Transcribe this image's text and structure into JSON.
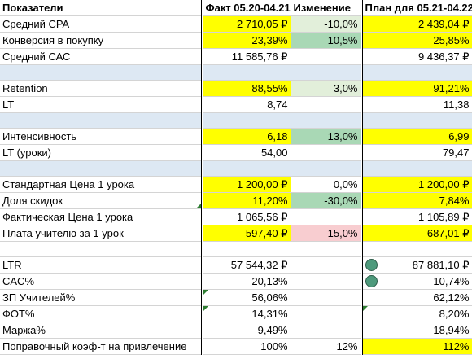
{
  "header": {
    "col0": "Показатели",
    "col1": "Факт 05.20-04.21",
    "col2": "Изменение",
    "col3": "План для 05.21-04.22"
  },
  "rows": [
    {
      "label": "Средний CPA",
      "fact": "2 710,05 ₽",
      "change": "-10,0%",
      "plan": "2 439,04 ₽"
    },
    {
      "label": "Конверсия в покупку",
      "fact": "23,39%",
      "change": "10,5%",
      "plan": "25,85%"
    },
    {
      "label": "Средний САС",
      "fact": "11 585,76 ₽",
      "change": "",
      "plan": "9 436,37 ₽"
    },
    {
      "label": "",
      "fact": "",
      "change": "",
      "plan": ""
    },
    {
      "label": "Retention",
      "fact": "88,55%",
      "change": "3,0%",
      "plan": "91,21%"
    },
    {
      "label": "LT",
      "fact": "8,74",
      "change": "",
      "plan": "11,38"
    },
    {
      "label": "",
      "fact": "",
      "change": "",
      "plan": ""
    },
    {
      "label": "Интенсивность",
      "fact": "6,18",
      "change": "13,0%",
      "plan": "6,99"
    },
    {
      "label": "LT (уроки)",
      "fact": "54,00",
      "change": "",
      "plan": "79,47"
    },
    {
      "label": "",
      "fact": "",
      "change": "",
      "plan": ""
    },
    {
      "label": "Стандартная Цена 1 урока",
      "fact": "1 200,00 ₽",
      "change": "0,0%",
      "plan": "1 200,00 ₽"
    },
    {
      "label": "Доля скидок",
      "fact": "11,20%",
      "change": "-30,0%",
      "plan": "7,84%"
    },
    {
      "label": "Фактическая Цена 1 урока",
      "fact": "1 065,56 ₽",
      "change": "",
      "plan": "1 105,89 ₽"
    },
    {
      "label": "Плата учителю за 1 урок",
      "fact": "597,40 ₽",
      "change": "15,0%",
      "plan": "687,01 ₽"
    },
    {
      "label": "",
      "fact": "",
      "change": "",
      "plan": ""
    },
    {
      "label": "LTR",
      "fact": "57 544,32 ₽",
      "change": "",
      "plan": "87 881,10 ₽"
    },
    {
      "label": "CAC%",
      "fact": "20,13%",
      "change": "",
      "plan": "10,74%"
    },
    {
      "label": "ЗП Учителей%",
      "fact": "56,06%",
      "change": "",
      "plan": "62,12%"
    },
    {
      "label": "ФОТ%",
      "fact": "14,31%",
      "change": "",
      "plan": "8,20%"
    },
    {
      "label": "Маржа%",
      "fact": "9,49%",
      "change": "",
      "plan": "18,94%"
    },
    {
      "label": "Поправочный коэф-т на привлечение",
      "fact": "100%",
      "change": "12%",
      "plan": "112%"
    }
  ],
  "colors": {
    "highlight_yellow": "#ffff00",
    "change_light_green": "#e2efda",
    "change_green": "#a9d8b5",
    "change_pink": "#f8cdd0",
    "spacer_blue": "#dde8f3",
    "comment_marker": "#2e7d32",
    "status_circle": "#4e9a7c"
  }
}
